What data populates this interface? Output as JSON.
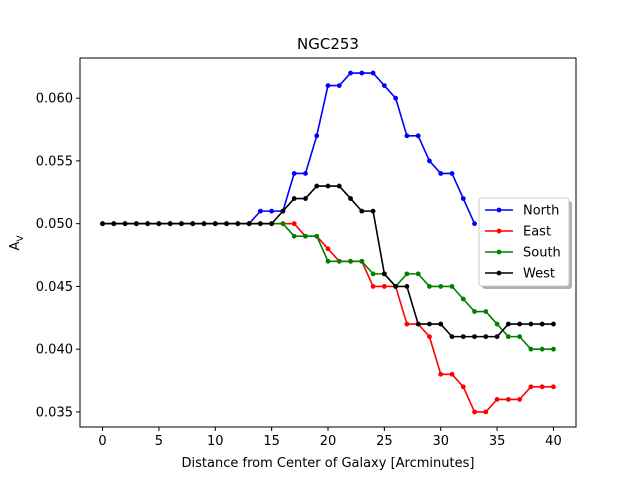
{
  "chart_data": {
    "type": "line",
    "title": "NGC253",
    "xlabel": "Distance from Center of Galaxy [Arcminutes]",
    "ylabel_main": "A",
    "ylabel_sub": "V",
    "xlim": [
      -2,
      42
    ],
    "ylim": [
      0.0338,
      0.0632
    ],
    "xticks": [
      0,
      5,
      10,
      15,
      20,
      25,
      30,
      35,
      40
    ],
    "yticks": [
      0.035,
      0.04,
      0.045,
      0.05,
      0.055,
      0.06
    ],
    "ytick_labels": [
      "0.035",
      "0.040",
      "0.045",
      "0.050",
      "0.055",
      "0.060"
    ],
    "legend_position": "center-right",
    "series": [
      {
        "name": "North",
        "color": "#0000ff",
        "x": [
          0,
          1,
          2,
          3,
          4,
          5,
          6,
          7,
          8,
          9,
          10,
          11,
          12,
          13,
          14,
          15,
          16,
          17,
          18,
          19,
          20,
          21,
          22,
          23,
          24,
          25,
          26,
          27,
          28,
          29,
          30,
          31,
          32,
          33
        ],
        "y": [
          0.05,
          0.05,
          0.05,
          0.05,
          0.05,
          0.05,
          0.05,
          0.05,
          0.05,
          0.05,
          0.05,
          0.05,
          0.05,
          0.05,
          0.051,
          0.051,
          0.051,
          0.054,
          0.054,
          0.057,
          0.061,
          0.061,
          0.062,
          0.062,
          0.062,
          0.061,
          0.06,
          0.057,
          0.057,
          0.055,
          0.054,
          0.054,
          0.052,
          0.05
        ]
      },
      {
        "name": "East",
        "color": "#ff0000",
        "x": [
          0,
          1,
          2,
          3,
          4,
          5,
          6,
          7,
          8,
          9,
          10,
          11,
          12,
          13,
          14,
          15,
          16,
          17,
          18,
          19,
          20,
          21,
          22,
          23,
          24,
          25,
          26,
          27,
          28,
          29,
          30,
          31,
          32,
          33,
          34,
          35,
          36,
          37,
          38,
          39,
          40
        ],
        "y": [
          0.05,
          0.05,
          0.05,
          0.05,
          0.05,
          0.05,
          0.05,
          0.05,
          0.05,
          0.05,
          0.05,
          0.05,
          0.05,
          0.05,
          0.05,
          0.05,
          0.05,
          0.05,
          0.049,
          0.049,
          0.048,
          0.047,
          0.047,
          0.047,
          0.045,
          0.045,
          0.045,
          0.042,
          0.042,
          0.041,
          0.038,
          0.038,
          0.037,
          0.035,
          0.035,
          0.036,
          0.036,
          0.036,
          0.037,
          0.037,
          0.037
        ]
      },
      {
        "name": "South",
        "color": "#008000",
        "x": [
          0,
          1,
          2,
          3,
          4,
          5,
          6,
          7,
          8,
          9,
          10,
          11,
          12,
          13,
          14,
          15,
          16,
          17,
          18,
          19,
          20,
          21,
          22,
          23,
          24,
          25,
          26,
          27,
          28,
          29,
          30,
          31,
          32,
          33,
          34,
          35,
          36,
          37,
          38,
          39,
          40
        ],
        "y": [
          0.05,
          0.05,
          0.05,
          0.05,
          0.05,
          0.05,
          0.05,
          0.05,
          0.05,
          0.05,
          0.05,
          0.05,
          0.05,
          0.05,
          0.05,
          0.05,
          0.05,
          0.049,
          0.049,
          0.049,
          0.047,
          0.047,
          0.047,
          0.047,
          0.046,
          0.046,
          0.045,
          0.046,
          0.046,
          0.045,
          0.045,
          0.045,
          0.044,
          0.043,
          0.043,
          0.042,
          0.041,
          0.041,
          0.04,
          0.04,
          0.04
        ]
      },
      {
        "name": "West",
        "color": "#000000",
        "x": [
          0,
          1,
          2,
          3,
          4,
          5,
          6,
          7,
          8,
          9,
          10,
          11,
          12,
          13,
          14,
          15,
          16,
          17,
          18,
          19,
          20,
          21,
          22,
          23,
          24,
          25,
          26,
          27,
          28,
          29,
          30,
          31,
          32,
          33,
          34,
          35,
          36,
          37,
          38,
          39,
          40
        ],
        "y": [
          0.05,
          0.05,
          0.05,
          0.05,
          0.05,
          0.05,
          0.05,
          0.05,
          0.05,
          0.05,
          0.05,
          0.05,
          0.05,
          0.05,
          0.05,
          0.05,
          0.051,
          0.052,
          0.052,
          0.053,
          0.053,
          0.053,
          0.052,
          0.051,
          0.051,
          0.046,
          0.045,
          0.045,
          0.042,
          0.042,
          0.042,
          0.041,
          0.041,
          0.041,
          0.041,
          0.041,
          0.042,
          0.042,
          0.042,
          0.042,
          0.042
        ]
      }
    ]
  }
}
